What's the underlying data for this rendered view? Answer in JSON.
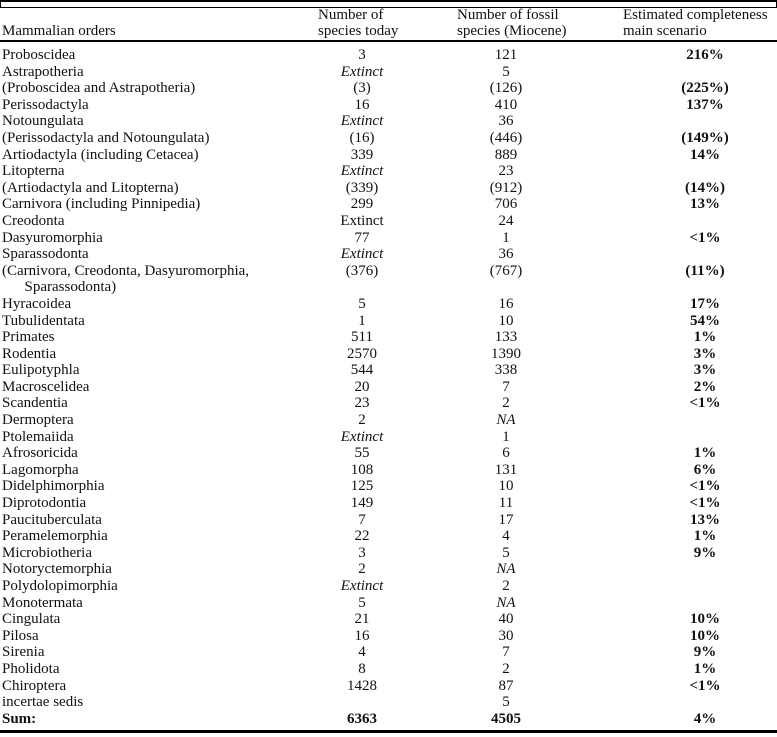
{
  "colors": {
    "background": "#ffffff",
    "text": "#111111",
    "rule": "#000000"
  },
  "table": {
    "header": {
      "col1": "Mammalian orders",
      "col2": [
        "Number of",
        "species today"
      ],
      "col3": [
        "Number of fossil",
        "species (Miocene)"
      ],
      "col4": [
        "Estimated completeness",
        "main scenario"
      ]
    },
    "rows": [
      {
        "order": "Proboscidea",
        "today": "3",
        "fossil": "121",
        "completeness": "216%"
      },
      {
        "order": "Astrapotheria",
        "today": "Extinct",
        "today_italic": true,
        "fossil": "5",
        "completeness": ""
      },
      {
        "order": "(Proboscidea and Astrapotheria)",
        "today": "(3)",
        "fossil": "(126)",
        "completeness": "(225%)"
      },
      {
        "order": "Perissodactyla",
        "today": "16",
        "fossil": "410",
        "completeness": "137%"
      },
      {
        "order": "Notoungulata",
        "today": "Extinct",
        "today_italic": true,
        "fossil": "36",
        "completeness": ""
      },
      {
        "order": "(Perissodactyla and Notoungulata)",
        "today": "(16)",
        "fossil": "(446)",
        "completeness": "(149%)"
      },
      {
        "order": "Artiodactyla (including Cetacea)",
        "today": "339",
        "fossil": "889",
        "completeness": "14%"
      },
      {
        "order": "Litopterna",
        "today": "Extinct",
        "today_italic": true,
        "fossil": "23",
        "completeness": ""
      },
      {
        "order": "(Artiodactyla and Litopterna)",
        "today": "(339)",
        "fossil": "(912)",
        "completeness": "(14%)"
      },
      {
        "order": "Carnivora (including Pinnipedia)",
        "today": "299",
        "fossil": "706",
        "completeness": "13%"
      },
      {
        "order": "Creodonta",
        "today": "Extinct",
        "today_italic": false,
        "fossil": "24",
        "completeness": ""
      },
      {
        "order": "Dasyuromorphia",
        "today": "77",
        "fossil": "1",
        "completeness": "<1%"
      },
      {
        "order": "Sparassodonta",
        "today": "Extinct",
        "today_italic": true,
        "fossil": "36",
        "completeness": ""
      },
      {
        "order": "(Carnivora, Creodonta, Dasyuromorphia,\n      Sparassodonta)",
        "today": "(376)",
        "fossil": "(767)",
        "completeness": "(11%)"
      },
      {
        "order": "Hyracoidea",
        "today": "5",
        "fossil": "16",
        "completeness": "17%"
      },
      {
        "order": "Tubulidentata",
        "today": "1",
        "fossil": "10",
        "completeness": "54%"
      },
      {
        "order": "Primates",
        "today": "511",
        "fossil": "133",
        "completeness": "1%"
      },
      {
        "order": "Rodentia",
        "today": "2570",
        "fossil": "1390",
        "completeness": "3%"
      },
      {
        "order": "Eulipotyphla",
        "today": "544",
        "fossil": "338",
        "completeness": "3%"
      },
      {
        "order": "Macroscelidea",
        "today": "20",
        "fossil": "7",
        "completeness": "2%"
      },
      {
        "order": "Scandentia",
        "today": "23",
        "fossil": "2",
        "completeness": "<1%"
      },
      {
        "order": "Dermoptera",
        "today": "2",
        "fossil": "NA",
        "fossil_italic": true,
        "completeness": ""
      },
      {
        "order": "Ptolemaiida",
        "today": "Extinct",
        "today_italic": true,
        "fossil": "1",
        "completeness": ""
      },
      {
        "order": "Afrosoricida",
        "today": "55",
        "fossil": "6",
        "completeness": "1%"
      },
      {
        "order": "Lagomorpha",
        "today": "108",
        "fossil": "131",
        "completeness": "6%"
      },
      {
        "order": "Didelphimorphia",
        "today": "125",
        "fossil": "10",
        "completeness": "<1%"
      },
      {
        "order": "Diprotodontia",
        "today": "149",
        "fossil": "11",
        "completeness": "<1%"
      },
      {
        "order": "Paucituberculata",
        "today": "7",
        "fossil": "17",
        "completeness": "13%"
      },
      {
        "order": "Peramelemorphia",
        "today": "22",
        "fossil": "4",
        "completeness": "1%"
      },
      {
        "order": "Microbiotheria",
        "today": "3",
        "fossil": "5",
        "completeness": "9%"
      },
      {
        "order": "Notoryctemorphia",
        "today": "2",
        "fossil": "NA",
        "fossil_italic": true,
        "completeness": ""
      },
      {
        "order": "Polydolopimorphia",
        "today": "Extinct",
        "today_italic": true,
        "fossil": "2",
        "completeness": ""
      },
      {
        "order": "Monotermata",
        "today": "5",
        "fossil": "NA",
        "fossil_italic": true,
        "completeness": ""
      },
      {
        "order": "Cingulata",
        "today": "21",
        "fossil": "40",
        "completeness": "10%"
      },
      {
        "order": "Pilosa",
        "today": "16",
        "fossil": "30",
        "completeness": "10%"
      },
      {
        "order": "Sirenia",
        "today": "4",
        "fossil": "7",
        "completeness": "9%"
      },
      {
        "order": "Pholidota",
        "today": "8",
        "fossil": "2",
        "completeness": "1%"
      },
      {
        "order": "Chiroptera",
        "today": "1428",
        "fossil": "87",
        "completeness": "<1%"
      },
      {
        "order": "incertae sedis",
        "today": "",
        "fossil": "5",
        "completeness": ""
      },
      {
        "order": "Sum:",
        "today": "6363",
        "fossil": "4505",
        "completeness": "4%",
        "bold": true
      }
    ]
  }
}
